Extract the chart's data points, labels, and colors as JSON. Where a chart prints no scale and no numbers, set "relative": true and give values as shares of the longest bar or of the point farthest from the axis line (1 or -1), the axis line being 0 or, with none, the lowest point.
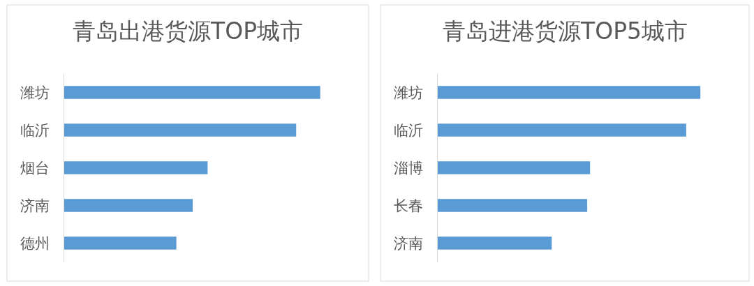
{
  "chart_data": [
    {
      "type": "bar",
      "orientation": "horizontal",
      "title": "青岛出港货源TOP城市",
      "categories": [
        "潍坊",
        "临沂",
        "烟台",
        "济南",
        "德州"
      ],
      "values": [
        1,
        0.906,
        0.56,
        0.502,
        0.438
      ],
      "color": "#5b9bd5",
      "relative": true
    },
    {
      "type": "bar",
      "orientation": "horizontal",
      "title": "青岛进港货源TOP5城市",
      "categories": [
        "潍坊",
        "临沂",
        "淄博",
        "长春",
        "济南"
      ],
      "values": [
        1,
        0.946,
        0.58,
        0.569,
        0.434
      ],
      "color": "#5b9bd5",
      "relative": true
    }
  ]
}
